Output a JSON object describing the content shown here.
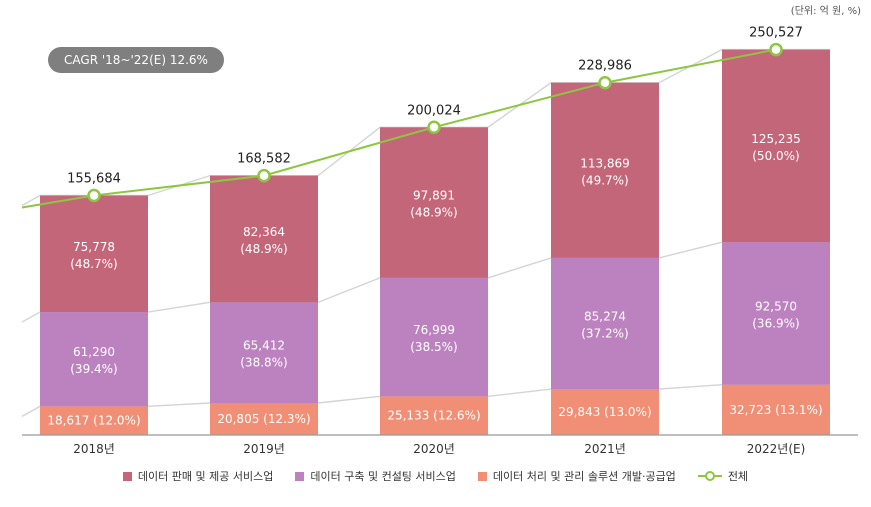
{
  "unit_label": "(단위: 억 원, %)",
  "cagr_label": "CAGR '18~'22(E) 12.6%",
  "colors": {
    "sales": "#c46679",
    "consulting": "#bc82bf",
    "solution": "#f08f75",
    "total_line": "#8dc63f",
    "connector": "#d4d4d4"
  },
  "legend": [
    {
      "label": "데이터 판매 및 제공 서비스업",
      "color": "#c46679"
    },
    {
      "label": "데이터 구축 및 컨설팅 서비스업",
      "color": "#bc82bf"
    },
    {
      "label": "데이터 처리 및 관리 솔루션 개발·공급업",
      "color": "#f08f75"
    },
    {
      "label": "전체",
      "color": "#8dc63f"
    }
  ],
  "chart_data": {
    "type": "bar",
    "stacked": true,
    "title": "",
    "xlabel": "",
    "ylabel": "",
    "ylim": [
      0,
      260000
    ],
    "categories": [
      "2018년",
      "2019년",
      "2020년",
      "2021년",
      "2022년(E)"
    ],
    "series": [
      {
        "name": "데이터 처리 및 관리 솔루션 개발·공급업",
        "values": [
          18617,
          20805,
          25133,
          29843,
          32723
        ],
        "labels": [
          "18,617 (12.0%)",
          "20,805 (12.3%)",
          "25,133 (12.6%)",
          "29,843 (13.0%)",
          "32,723 (13.1%)"
        ]
      },
      {
        "name": "데이터 구축 및 컨설팅 서비스업",
        "values": [
          61290,
          65412,
          76999,
          85274,
          92570
        ],
        "labels": [
          "61,290",
          "65,412",
          "76,999",
          "85,274",
          "92,570"
        ],
        "pct_labels": [
          "(39.4%)",
          "(38.8%)",
          "(38.5%)",
          "(37.2%)",
          "(36.9%)"
        ]
      },
      {
        "name": "데이터 판매 및 제공 서비스업",
        "values": [
          75778,
          82364,
          97891,
          113869,
          125235
        ],
        "labels": [
          "75,778",
          "82,364",
          "97,891",
          "113,869",
          "125,235"
        ],
        "pct_labels": [
          "(48.7%)",
          "(48.9%)",
          "(48.9%)",
          "(49.7%)",
          "(50.0%)"
        ]
      }
    ],
    "total": {
      "name": "전체",
      "values": [
        155684,
        168582,
        200024,
        228986,
        250527
      ],
      "labels": [
        "155,684",
        "168,582",
        "200,024",
        "228,986",
        "250,527"
      ]
    }
  }
}
